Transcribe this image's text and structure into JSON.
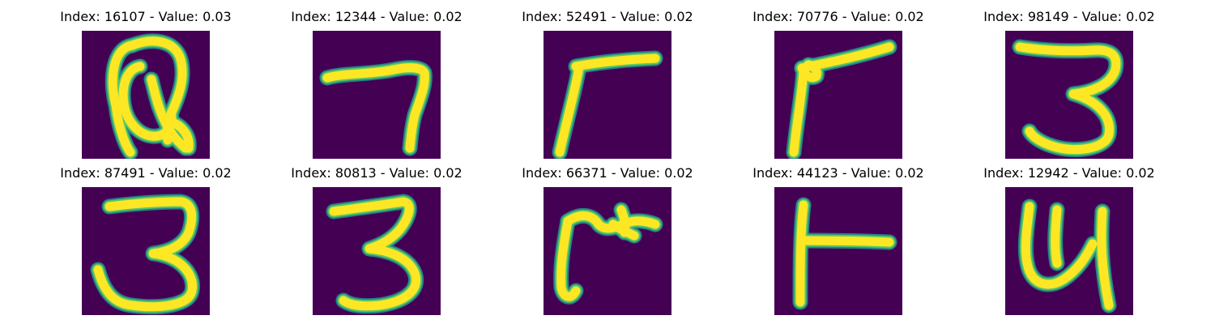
{
  "figure": {
    "background_color": "#440154",
    "stroke_color": "#fde725",
    "edge_color": "#21918c",
    "mid_color": "#5ec962",
    "panels": [
      {
        "index": "16107",
        "value": "0.03",
        "title": "Index: 16107 - Value: 0.03",
        "glyph": "Q-like handwritten letter"
      },
      {
        "index": "12344",
        "value": "0.02",
        "title": "Index: 12344 - Value: 0.02",
        "glyph": "7-like stroke"
      },
      {
        "index": "52491",
        "value": "0.02",
        "title": "Index: 52491 - Value: 0.02",
        "glyph": "r-like stroke"
      },
      {
        "index": "70776",
        "value": "0.02",
        "title": "Index: 70776 - Value: 0.02",
        "glyph": "r-like stroke with loop"
      },
      {
        "index": "98149",
        "value": "0.02",
        "title": "Index: 98149 - Value: 0.02",
        "glyph": "3-like stroke"
      },
      {
        "index": "87491",
        "value": "0.02",
        "title": "Index: 87491 - Value: 0.02",
        "glyph": "3-like stroke"
      },
      {
        "index": "80813",
        "value": "0.02",
        "title": "Index: 80813 - Value: 0.02",
        "glyph": "3-like stroke"
      },
      {
        "index": "66371",
        "value": "0.02",
        "title": "Index: 66371 - Value: 0.02",
        "glyph": "r-like stroke with star"
      },
      {
        "index": "44123",
        "value": "0.02",
        "title": "Index: 44123 - Value: 0.02",
        "glyph": "T rotated stroke"
      },
      {
        "index": "12942",
        "value": "0.02",
        "title": "Index: 12942 - Value: 0.02",
        "glyph": "u-like stroke"
      }
    ]
  }
}
